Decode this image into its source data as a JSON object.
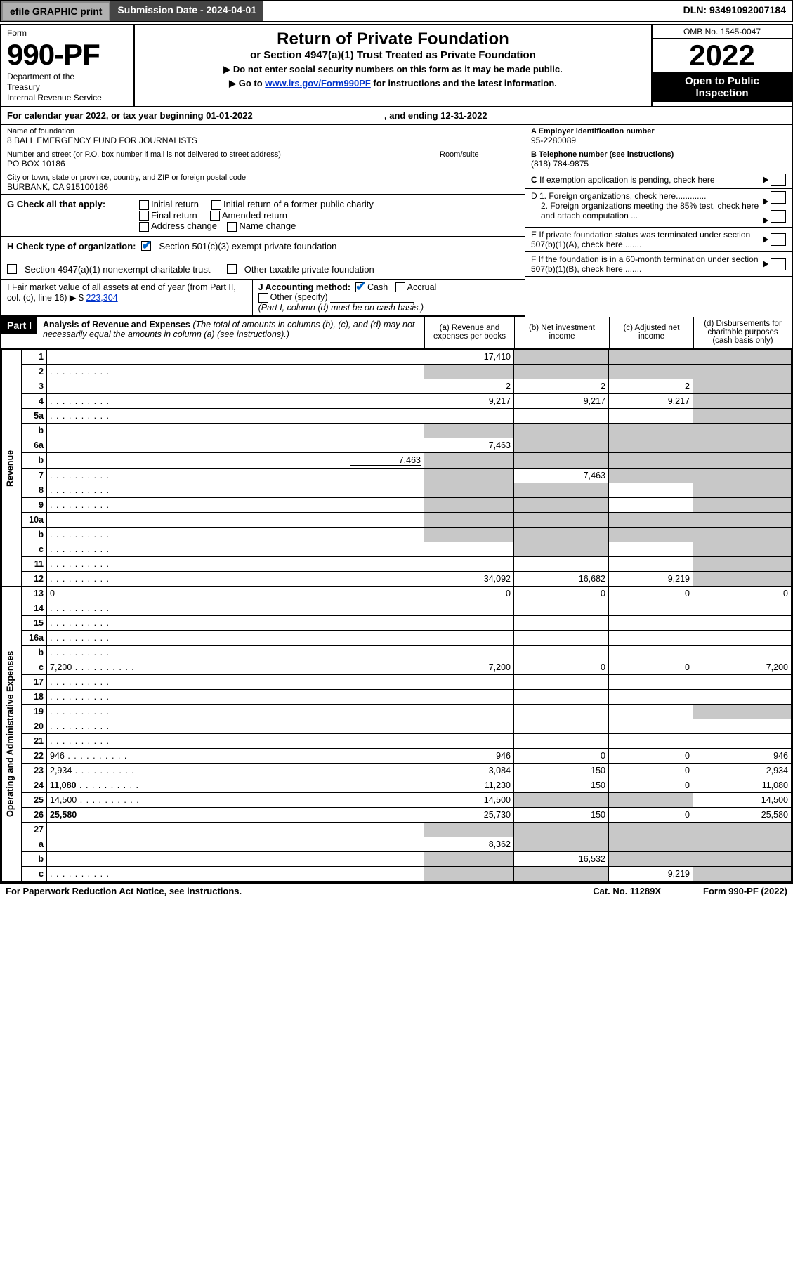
{
  "topbar": {
    "efile": "efile GRAPHIC print",
    "submission": "Submission Date - 2024-04-01",
    "dln": "DLN: 93491092007184"
  },
  "header": {
    "form_word": "Form",
    "form_num": "990-PF",
    "dept_lines": "Department of the\nTreasury\nInternal Revenue Service",
    "title": "Return of Private Foundation",
    "subtitle": "or Section 4947(a)(1) Trust Treated as Private Foundation",
    "note1": "▶ Do not enter social security numbers on this form as it may be made public.",
    "note2_pre": "▶ Go to ",
    "note2_link": "www.irs.gov/Form990PF",
    "note2_post": " for instructions and the latest information.",
    "omb": "OMB No. 1545-0047",
    "year": "2022",
    "open": "Open to Public\nInspection"
  },
  "calyear": {
    "text_pre": "For calendar year 2022, or tax year beginning ",
    "begin": "01-01-2022",
    "mid": " , and ending ",
    "end": "12-31-2022"
  },
  "entity": {
    "name_label": "Name of foundation",
    "name": "8 BALL EMERGENCY FUND FOR JOURNALISTS",
    "addr_label": "Number and street (or P.O. box number if mail is not delivered to street address)",
    "addr": "PO BOX 10186",
    "room_label": "Room/suite",
    "city_label": "City or town, state or province, country, and ZIP or foreign postal code",
    "city": "BURBANK, CA  915100186",
    "ein_label": "A Employer identification number",
    "ein": "95-2280089",
    "tel_label": "B Telephone number (see instructions)",
    "tel": "(818) 784-9875",
    "c_label": "C If exemption application is pending, check here",
    "d1": "D 1. Foreign organizations, check here.............",
    "d2": "2. Foreign organizations meeting the 85% test, check here and attach computation ...",
    "e": "E  If private foundation status was terminated under section 507(b)(1)(A), check here .......",
    "f": "F  If the foundation is in a 60-month termination under section 507(b)(1)(B), check here ......."
  },
  "checks": {
    "g_label": "G Check all that apply:",
    "g_opts": [
      "Initial return",
      "Initial return of a former public charity",
      "Final return",
      "Amended return",
      "Address change",
      "Name change"
    ],
    "h_label": "H Check type of organization:",
    "h_opts": [
      "Section 501(c)(3) exempt private foundation",
      "Section 4947(a)(1) nonexempt charitable trust",
      "Other taxable private foundation"
    ],
    "i_label": "I Fair market value of all assets at end of year (from Part II, col. (c), line 16) ▶ $",
    "i_val": "223,304",
    "j_label": "J Accounting method:",
    "j_opts": [
      "Cash",
      "Accrual",
      "Other (specify)"
    ],
    "j_note": "(Part I, column (d) must be on cash basis.)"
  },
  "part1": {
    "label": "Part I",
    "title": "Analysis of Revenue and Expenses",
    "title_note": "(The total of amounts in columns (b), (c), and (d) may not necessarily equal the amounts in column (a) (see instructions).)",
    "col_a": "(a)   Revenue and expenses per books",
    "col_b": "(b)   Net investment income",
    "col_c": "(c)   Adjusted net income",
    "col_d": "(d)  Disbursements for charitable purposes (cash basis only)"
  },
  "side_rev": "Revenue",
  "side_exp": "Operating and Administrative Expenses",
  "rows": [
    {
      "n": "1",
      "d": "",
      "a": "17,410",
      "b": "",
      "c": "",
      "greyB": true,
      "greyC": true,
      "greyD": true
    },
    {
      "n": "2",
      "d": "",
      "dots": true,
      "a": "",
      "b": "",
      "c": "",
      "greyA": true,
      "greyB": true,
      "greyC": true,
      "greyD": true
    },
    {
      "n": "3",
      "d": "",
      "a": "2",
      "b": "2",
      "c": "2",
      "greyD": true
    },
    {
      "n": "4",
      "d": "",
      "dots": true,
      "a": "9,217",
      "b": "9,217",
      "c": "9,217",
      "greyD": true
    },
    {
      "n": "5a",
      "d": "",
      "dots": true,
      "a": "",
      "b": "",
      "c": "",
      "greyD": true
    },
    {
      "n": "b",
      "d": "",
      "a": "",
      "b": "",
      "c": "",
      "greyA": true,
      "greyB": true,
      "greyC": true,
      "greyD": true
    },
    {
      "n": "6a",
      "d": "",
      "a": "7,463",
      "b": "",
      "c": "",
      "greyB": true,
      "greyC": true,
      "greyD": true
    },
    {
      "n": "b",
      "d": "",
      "inline_val": "7,463",
      "a": "",
      "b": "",
      "c": "",
      "greyA": true,
      "greyB": true,
      "greyC": true,
      "greyD": true
    },
    {
      "n": "7",
      "d": "",
      "dots": true,
      "a": "",
      "b": "7,463",
      "c": "",
      "greyA": true,
      "greyC": true,
      "greyD": true
    },
    {
      "n": "8",
      "d": "",
      "dots": true,
      "a": "",
      "b": "",
      "c": "",
      "greyA": true,
      "greyB": true,
      "greyD": true
    },
    {
      "n": "9",
      "d": "",
      "dots": true,
      "a": "",
      "b": "",
      "c": "",
      "greyA": true,
      "greyB": true,
      "greyD": true
    },
    {
      "n": "10a",
      "d": "",
      "a": "",
      "b": "",
      "c": "",
      "greyA": true,
      "greyB": true,
      "greyC": true,
      "greyD": true
    },
    {
      "n": "b",
      "d": "",
      "dots": true,
      "a": "",
      "b": "",
      "c": "",
      "greyA": true,
      "greyB": true,
      "greyC": true,
      "greyD": true
    },
    {
      "n": "c",
      "d": "",
      "dots": true,
      "a": "",
      "b": "",
      "c": "",
      "greyB": true,
      "greyD": true
    },
    {
      "n": "11",
      "d": "",
      "dots": true,
      "a": "",
      "b": "",
      "c": "",
      "greyD": true
    },
    {
      "n": "12",
      "d": "",
      "dots": true,
      "bold": true,
      "a": "34,092",
      "b": "16,682",
      "c": "9,219",
      "greyD": true
    },
    {
      "n": "13",
      "d": "0",
      "a": "0",
      "b": "0",
      "c": "0"
    },
    {
      "n": "14",
      "d": "",
      "dots": true,
      "a": "",
      "b": "",
      "c": ""
    },
    {
      "n": "15",
      "d": "",
      "dots": true,
      "a": "",
      "b": "",
      "c": ""
    },
    {
      "n": "16a",
      "d": "",
      "dots": true,
      "a": "",
      "b": "",
      "c": ""
    },
    {
      "n": "b",
      "d": "",
      "dots": true,
      "a": "",
      "b": "",
      "c": ""
    },
    {
      "n": "c",
      "d": "7,200",
      "dots": true,
      "a": "7,200",
      "b": "0",
      "c": "0"
    },
    {
      "n": "17",
      "d": "",
      "dots": true,
      "a": "",
      "b": "",
      "c": ""
    },
    {
      "n": "18",
      "d": "",
      "dots": true,
      "a": "",
      "b": "",
      "c": ""
    },
    {
      "n": "19",
      "d": "",
      "dots": true,
      "a": "",
      "b": "",
      "c": "",
      "greyD": true
    },
    {
      "n": "20",
      "d": "",
      "dots": true,
      "a": "",
      "b": "",
      "c": ""
    },
    {
      "n": "21",
      "d": "",
      "dots": true,
      "a": "",
      "b": "",
      "c": ""
    },
    {
      "n": "22",
      "d": "946",
      "dots": true,
      "a": "946",
      "b": "0",
      "c": "0"
    },
    {
      "n": "23",
      "d": "2,934",
      "dots": true,
      "a": "3,084",
      "b": "150",
      "c": "0"
    },
    {
      "n": "24",
      "d": "11,080",
      "dots": true,
      "bold": true,
      "a": "11,230",
      "b": "150",
      "c": "0"
    },
    {
      "n": "25",
      "d": "14,500",
      "dots": true,
      "a": "14,500",
      "b": "",
      "c": "",
      "greyB": true,
      "greyC": true
    },
    {
      "n": "26",
      "d": "25,580",
      "bold": true,
      "a": "25,730",
      "b": "150",
      "c": "0"
    },
    {
      "n": "27",
      "d": "",
      "a": "",
      "b": "",
      "c": "",
      "greyA": true,
      "greyB": true,
      "greyC": true,
      "greyD": true
    },
    {
      "n": "a",
      "d": "",
      "bold": true,
      "a": "8,362",
      "b": "",
      "c": "",
      "greyB": true,
      "greyC": true,
      "greyD": true
    },
    {
      "n": "b",
      "d": "",
      "bold": true,
      "a": "",
      "b": "16,532",
      "c": "",
      "greyA": true,
      "greyC": true,
      "greyD": true
    },
    {
      "n": "c",
      "d": "",
      "dots": true,
      "bold": true,
      "a": "",
      "b": "",
      "c": "9,219",
      "greyA": true,
      "greyB": true,
      "greyD": true
    }
  ],
  "footer": {
    "left": "For Paperwork Reduction Act Notice, see instructions.",
    "mid": "Cat. No. 11289X",
    "right": "Form 990-PF (2022)"
  }
}
